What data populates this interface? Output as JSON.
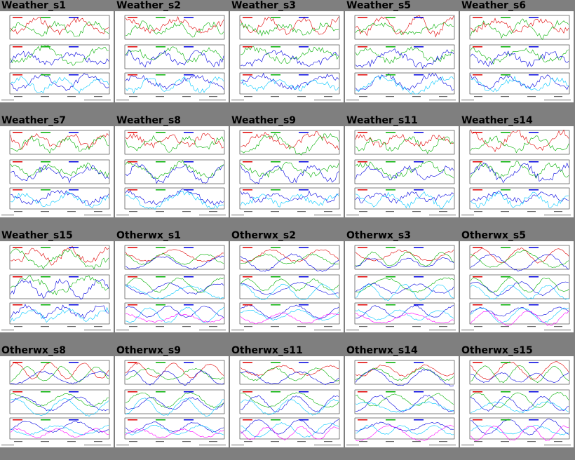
{
  "rows": [
    [
      "Weather_s1",
      "Weather_s2",
      "Weather_s3",
      "Weather_s5",
      "Weather_s6"
    ],
    [
      "Weather_s7",
      "Weather_s8",
      "Weather_s9",
      "Weather_s11",
      "Weather_s14"
    ],
    [
      "Weather_s15",
      "Otherwx_s1",
      "Otherwx_s2",
      "Otherwx_s3",
      "Otherwx_s5"
    ],
    [
      "Otherwx_s8",
      "Otherwx_s9",
      "Otherwx_s11",
      "Otherwx_s14",
      "Otherwx_s15"
    ]
  ],
  "colors": {
    "background": "#7f7f7f",
    "panel": "#ffffff",
    "series": [
      "#e00000",
      "#00b000",
      "#0000e0",
      "#00c8ff",
      "#ff00ff"
    ]
  }
}
